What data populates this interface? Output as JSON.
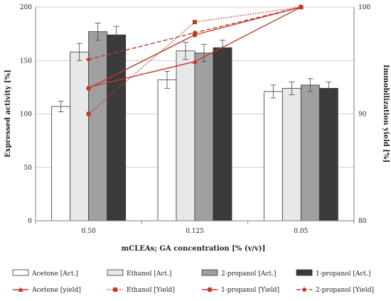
{
  "chart_data": {
    "type": "bar",
    "xlabel": "mCLEAs; GA concentration [% (v/v)]",
    "ylabel": "Expressed activity [%]",
    "y2label": "Immobilization yield [%]",
    "categories": [
      "0.50",
      "0.125",
      "0.05"
    ],
    "ylim": [
      0,
      200
    ],
    "yticks": [
      0,
      50,
      100,
      150,
      200
    ],
    "y2lim": [
      80,
      100
    ],
    "y2ticks": [
      80,
      90,
      100
    ],
    "grid": "horizontal",
    "legend_position": "bottom",
    "bar_series": [
      {
        "name": "Acetone [Act.]",
        "values": [
          107,
          132,
          121
        ],
        "errors": [
          5,
          8,
          6
        ],
        "color": "#ffffff"
      },
      {
        "name": "Ethanol [Act.]",
        "values": [
          158,
          159,
          124
        ],
        "errors": [
          8,
          8,
          6
        ],
        "color": "#e8e8e8"
      },
      {
        "name": "2-propanol [Act.]",
        "values": [
          177,
          157,
          127
        ],
        "errors": [
          8,
          8,
          6
        ],
        "color": "#a0a0a0"
      },
      {
        "name": "1-propanol [Act.]",
        "values": [
          174,
          162,
          124
        ],
        "errors": [
          8,
          7,
          6
        ],
        "color": "#3a3a3a"
      }
    ],
    "line_series": [
      {
        "name": "Acetone [yield]",
        "x": [
          "0.50",
          "0.125",
          "0.05"
        ],
        "values": [
          92.5,
          94.9,
          100
        ],
        "color": "#c0392b",
        "dash": "solid",
        "marker": "triangle"
      },
      {
        "name": "Ethanol [Yield]",
        "x": [
          "0.50",
          "0.125",
          "0.05"
        ],
        "values": [
          90.0,
          98.6,
          100
        ],
        "color": "#c0392b",
        "dash": "dotted",
        "marker": "square"
      },
      {
        "name": "1-propanol [Yield]",
        "x": [
          "0.50",
          "0.125",
          "0.05"
        ],
        "values": [
          92.4,
          97.4,
          100
        ],
        "color": "#c0392b",
        "dash": "solid",
        "marker": "circle"
      },
      {
        "name": "2-propanol [Yield]",
        "x": [
          "0.50",
          "0.125",
          "0.05"
        ],
        "values": [
          95.1,
          97.6,
          100
        ],
        "color": "#c0392b",
        "dash": "dashed",
        "marker": "diamond"
      }
    ]
  }
}
